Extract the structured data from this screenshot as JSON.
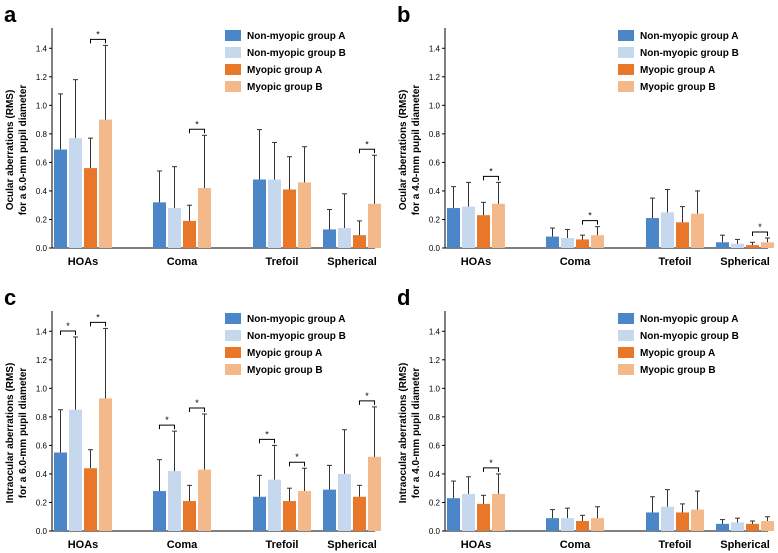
{
  "series_names": [
    "Non-myopic group A",
    "Non-myopic group B",
    "Myopic group A",
    "Myopic group B"
  ],
  "series_colors": [
    "#4a86c8",
    "#c5d8ee",
    "#e8772a",
    "#f4b98a"
  ],
  "chart_data": [
    {
      "type": "bar",
      "panel": "a",
      "ylabel_line1": "Ocular aberrations (RMS)",
      "ylabel_line2": "for a 6.0-mm pupil diameter",
      "categories": [
        "HOAs",
        "Coma",
        "Trefoil",
        "Spherical"
      ],
      "yticks": [
        "0.0",
        "0.2",
        "0.4",
        "0.6",
        "0.8",
        "1.0",
        "1.2",
        "1.4"
      ],
      "ylim": [
        0,
        1.5
      ],
      "legend_position": "top-right",
      "series": [
        {
          "name": "Non-myopic group A",
          "values": [
            0.69,
            0.32,
            0.48,
            0.13
          ],
          "errors": [
            0.39,
            0.22,
            0.35,
            0.14
          ]
        },
        {
          "name": "Non-myopic group B",
          "values": [
            0.77,
            0.28,
            0.48,
            0.14
          ],
          "errors": [
            0.41,
            0.29,
            0.26,
            0.24
          ]
        },
        {
          "name": "Myopic group A",
          "values": [
            0.56,
            0.19,
            0.41,
            0.09
          ],
          "errors": [
            0.21,
            0.11,
            0.23,
            0.1
          ]
        },
        {
          "name": "Myopic group B",
          "values": [
            0.9,
            0.42,
            0.46,
            0.31
          ],
          "errors": [
            0.52,
            0.37,
            0.25,
            0.34
          ]
        }
      ],
      "significance": [
        {
          "category": 0,
          "from_series": 2,
          "to_series": 3,
          "label": "*"
        },
        {
          "category": 1,
          "from_series": 2,
          "to_series": 3,
          "label": "*"
        },
        {
          "category": 3,
          "from_series": 2,
          "to_series": 3,
          "label": "*"
        }
      ]
    },
    {
      "type": "bar",
      "panel": "b",
      "ylabel_line1": "Ocular aberrations (RMS)",
      "ylabel_line2": "for a 4.0-mm pupil diameter",
      "categories": [
        "HOAs",
        "Coma",
        "Trefoil",
        "Spherical"
      ],
      "yticks": [
        "0.0",
        "0.2",
        "0.4",
        "0.6",
        "0.8",
        "1.0",
        "1.2",
        "1.4"
      ],
      "ylim": [
        0,
        1.5
      ],
      "legend_position": "top-right",
      "series": [
        {
          "name": "Non-myopic group A",
          "values": [
            0.28,
            0.08,
            0.21,
            0.04
          ],
          "errors": [
            0.15,
            0.06,
            0.14,
            0.05
          ]
        },
        {
          "name": "Non-myopic group B",
          "values": [
            0.29,
            0.07,
            0.25,
            0.03
          ],
          "errors": [
            0.17,
            0.06,
            0.16,
            0.03
          ]
        },
        {
          "name": "Myopic group A",
          "values": [
            0.23,
            0.06,
            0.18,
            0.02
          ],
          "errors": [
            0.09,
            0.03,
            0.11,
            0.02
          ]
        },
        {
          "name": "Myopic group B",
          "values": [
            0.31,
            0.09,
            0.24,
            0.04
          ],
          "errors": [
            0.15,
            0.06,
            0.16,
            0.03
          ]
        }
      ],
      "significance": [
        {
          "category": 0,
          "from_series": 2,
          "to_series": 3,
          "label": "*"
        },
        {
          "category": 1,
          "from_series": 2,
          "to_series": 3,
          "label": "*"
        },
        {
          "category": 3,
          "from_series": 2,
          "to_series": 3,
          "label": "*"
        }
      ]
    },
    {
      "type": "bar",
      "panel": "c",
      "ylabel_line1": "Intraocular aberrations (RMS)",
      "ylabel_line2": "for a 6.0-mm pupil diameter",
      "categories": [
        "HOAs",
        "Coma",
        "Trefoil",
        "Spherical"
      ],
      "yticks": [
        "0.0",
        "0.2",
        "0.4",
        "0.6",
        "0.8",
        "1.0",
        "1.2",
        "1.4"
      ],
      "ylim": [
        0,
        1.5
      ],
      "legend_position": "top-right",
      "series": [
        {
          "name": "Non-myopic group A",
          "values": [
            0.55,
            0.28,
            0.24,
            0.29
          ],
          "errors": [
            0.3,
            0.22,
            0.15,
            0.17
          ]
        },
        {
          "name": "Non-myopic group B",
          "values": [
            0.85,
            0.42,
            0.36,
            0.4
          ],
          "errors": [
            0.51,
            0.28,
            0.24,
            0.31
          ]
        },
        {
          "name": "Myopic group A",
          "values": [
            0.44,
            0.21,
            0.21,
            0.24
          ],
          "errors": [
            0.13,
            0.11,
            0.09,
            0.08
          ]
        },
        {
          "name": "Myopic group B",
          "values": [
            0.93,
            0.43,
            0.28,
            0.52
          ],
          "errors": [
            0.49,
            0.39,
            0.16,
            0.35
          ]
        }
      ],
      "significance": [
        {
          "category": 0,
          "from_series": 0,
          "to_series": 1,
          "label": "*"
        },
        {
          "category": 0,
          "from_series": 2,
          "to_series": 3,
          "label": "*"
        },
        {
          "category": 1,
          "from_series": 0,
          "to_series": 1,
          "label": "*"
        },
        {
          "category": 1,
          "from_series": 2,
          "to_series": 3,
          "label": "*"
        },
        {
          "category": 2,
          "from_series": 0,
          "to_series": 1,
          "label": "*"
        },
        {
          "category": 2,
          "from_series": 2,
          "to_series": 3,
          "label": "*"
        },
        {
          "category": 3,
          "from_series": 2,
          "to_series": 3,
          "label": "*"
        }
      ]
    },
    {
      "type": "bar",
      "panel": "d",
      "ylabel_line1": "Intraocular aberrations (RMS)",
      "ylabel_line2": "for a 4.0-mm pupil diameter",
      "categories": [
        "HOAs",
        "Coma",
        "Trefoil",
        "Spherical"
      ],
      "yticks": [
        "0.0",
        "0.2",
        "0.4",
        "0.6",
        "0.8",
        "1.0",
        "1.2",
        "1.4"
      ],
      "ylim": [
        0,
        1.5
      ],
      "legend_position": "top-right",
      "series": [
        {
          "name": "Non-myopic group A",
          "values": [
            0.23,
            0.09,
            0.13,
            0.05
          ],
          "errors": [
            0.12,
            0.06,
            0.11,
            0.03
          ]
        },
        {
          "name": "Non-myopic group B",
          "values": [
            0.26,
            0.09,
            0.17,
            0.06
          ],
          "errors": [
            0.12,
            0.07,
            0.12,
            0.03
          ]
        },
        {
          "name": "Myopic group A",
          "values": [
            0.19,
            0.07,
            0.13,
            0.05
          ],
          "errors": [
            0.06,
            0.04,
            0.06,
            0.02
          ]
        },
        {
          "name": "Myopic group B",
          "values": [
            0.26,
            0.09,
            0.15,
            0.07
          ],
          "errors": [
            0.14,
            0.08,
            0.13,
            0.03
          ]
        }
      ],
      "significance": [
        {
          "category": 0,
          "from_series": 2,
          "to_series": 3,
          "label": "*"
        }
      ]
    }
  ]
}
